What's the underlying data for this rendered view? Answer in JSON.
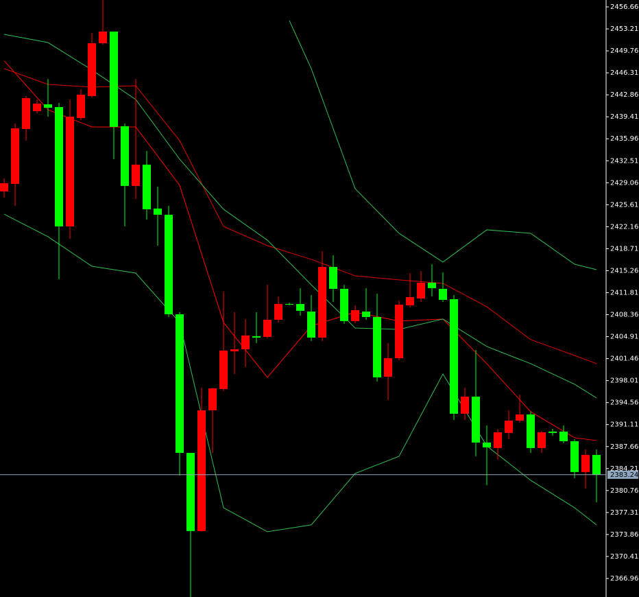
{
  "chart_data": {
    "type": "candlestick",
    "up_color": "#ff0000",
    "down_color": "#00ff00",
    "ylim": [
      2364.05,
      2457.74
    ],
    "yticks": [
      2456.66,
      2453.21,
      2449.76,
      2446.31,
      2442.86,
      2439.41,
      2435.96,
      2432.51,
      2429.06,
      2425.61,
      2422.16,
      2418.71,
      2415.26,
      2411.81,
      2408.36,
      2404.91,
      2401.46,
      2398.01,
      2394.56,
      2391.11,
      2387.66,
      2384.21,
      2380.76,
      2377.31,
      2373.86,
      2370.41,
      2366.96
    ],
    "current_price": 2383.24,
    "current_price_color": "#8fa7bf",
    "open": [
      2427.7,
      2428.88,
      2437.5,
      2440.3,
      2441.37,
      2440.94,
      2422.21,
      2439.22,
      2442.67,
      2450.96,
      2452.79,
      2437.93,
      2428.56,
      2431.9,
      2425.01,
      2424.04,
      2408.42,
      2386.67,
      2374.4,
      2393.35,
      2396.69,
      2402.61,
      2402.93,
      2404.98,
      2404.87,
      2407.56,
      2410.04,
      2410.04,
      2408.85,
      2404.76,
      2415.85,
      2412.41,
      2407.35,
      2408.85,
      2407.99,
      2398.62,
      2401.53,
      2409.82,
      2410.9,
      2413.38,
      2412.41,
      2410.79,
      2392.81,
      2395.5,
      2388.29,
      2387.43,
      2389.8,
      2391.73,
      2392.7,
      2387.43,
      2390.01,
      2390.01,
      2388.5,
      2383.66,
      2386.35
    ],
    "high": [
      2429.74,
      2438.36,
      2442.67,
      2442.13,
      2445.36,
      2441.59,
      2442.13,
      2443.74,
      2452.57,
      2457.74,
      2452.79,
      2438.36,
      2445.36,
      2434.05,
      2428.45,
      2425.44,
      2408.75,
      2386.67,
      2396.9,
      2396.9,
      2411.98,
      2408.75,
      2407.67,
      2408.75,
      2413.05,
      2411.22,
      2410.25,
      2412.52,
      2411.44,
      2418.33,
      2417.68,
      2413.05,
      2409.82,
      2412.52,
      2411.65,
      2403.9,
      2410.58,
      2414.88,
      2415.21,
      2416.28,
      2414.99,
      2411.44,
      2396.9,
      2402.82,
      2390.98,
      2390.44,
      2393.35,
      2395.82,
      2393.13,
      2390.12,
      2390.44,
      2390.98,
      2388.83,
      2387.21,
      2387.21
    ],
    "low": [
      2426.73,
      2425.44,
      2435.67,
      2439.97,
      2439.43,
      2413.92,
      2420.27,
      2438.9,
      2442.45,
      2450.74,
      2432.76,
      2422.21,
      2426.51,
      2423.28,
      2419.19,
      2407.99,
      2383.12,
      2364.05,
      2374.29,
      2386.67,
      2396.36,
      2399.05,
      2400.13,
      2403.9,
      2404.65,
      2407.13,
      2409.82,
      2408.21,
      2404.22,
      2404.22,
      2410.36,
      2406.92,
      2407.02,
      2407.56,
      2397.87,
      2394.96,
      2401.21,
      2409.5,
      2410.36,
      2411.22,
      2410.36,
      2391.84,
      2391.84,
      2386.13,
      2381.61,
      2385.6,
      2388.83,
      2391.41,
      2386.67,
      2386.67,
      2389.37,
      2388.18,
      2382.69,
      2381.07,
      2378.92
    ],
    "close": [
      2428.99,
      2437.6,
      2442.34,
      2441.48,
      2440.83,
      2422.21,
      2439.43,
      2442.88,
      2450.96,
      2452.79,
      2437.82,
      2428.56,
      2431.9,
      2424.9,
      2424.04,
      2408.42,
      2386.67,
      2374.4,
      2393.35,
      2396.79,
      2402.72,
      2402.93,
      2405.09,
      2404.76,
      2407.56,
      2410.04,
      2409.93,
      2408.96,
      2404.76,
      2415.85,
      2412.41,
      2407.35,
      2409.07,
      2407.99,
      2398.52,
      2401.53,
      2409.93,
      2411.11,
      2413.38,
      2412.52,
      2410.68,
      2392.81,
      2395.5,
      2388.29,
      2387.53,
      2389.9,
      2391.73,
      2392.7,
      2387.43,
      2389.9,
      2389.8,
      2388.5,
      2383.66,
      2386.35,
      2383.24
    ],
    "lines": [
      {
        "color": "#ff0000",
        "x": [
          0,
          4,
          8,
          12,
          16,
          20,
          24,
          28,
          32,
          36,
          40,
          44,
          48,
          52,
          54
        ],
        "values": [
          2448.22,
          2440.51,
          2437.82,
          2437.82,
          2428.67,
          2407.13,
          2398.52,
          2406.59,
          2408.75,
          2407.35,
          2407.67,
          2400.67,
          2393.13,
          2389.04,
          2388.61
        ]
      },
      {
        "color": "#e00000",
        "x": [
          0,
          4,
          8,
          12,
          16,
          20,
          24,
          28,
          32,
          36,
          40,
          44,
          48,
          52,
          54
        ],
        "values": [
          2446.97,
          2444.5,
          2444.06,
          2444.28,
          2435.67,
          2422.21,
          2419.19,
          2417.04,
          2414.45,
          2413.81,
          2413.27,
          2409.61,
          2404.44,
          2401.96,
          2400.67
        ]
      },
      {
        "color": "#2fbf4f",
        "x": [
          0,
          4,
          8,
          12,
          16,
          20,
          24,
          28,
          32,
          36,
          40,
          44,
          48,
          52,
          54
        ],
        "values": [
          2452.36,
          2451.06,
          2446.76,
          2442.13,
          2432.76,
          2424.9,
          2420.05,
          2413.05,
          2406.27,
          2406.05,
          2407.67,
          2403.36,
          2400.67,
          2397.44,
          2395.29
        ]
      },
      {
        "color": "#2fbf4f",
        "x": [
          26,
          28,
          32,
          36,
          40,
          44,
          48,
          52,
          54
        ],
        "values": [
          2454.51,
          2446.97,
          2428.13,
          2421.13,
          2416.61,
          2421.67,
          2421.13,
          2416.28,
          2415.42
        ]
      },
      {
        "color": "#2fbf4f",
        "x": [
          0,
          4,
          8,
          12,
          16,
          20,
          24,
          28,
          32,
          36,
          40,
          44,
          48,
          52,
          54
        ],
        "values": [
          2424.14,
          2420.59,
          2415.96,
          2414.88,
          2407.13,
          2378.06,
          2374.29,
          2375.37,
          2383.44,
          2386.13,
          2399.05,
          2387.75,
          2382.36,
          2378.06,
          2375.37
        ]
      }
    ]
  }
}
